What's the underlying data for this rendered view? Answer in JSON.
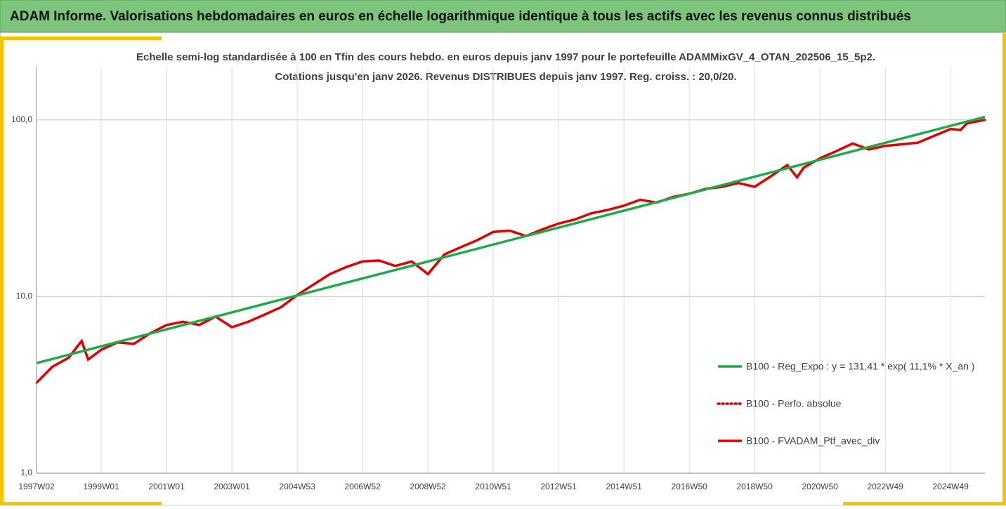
{
  "header": {
    "title": "ADAM Informe. Valorisations hebdomadaires en euros en échelle logarithmique identique à tous les actifs avec les revenus connus distribués"
  },
  "chart_data": {
    "type": "line",
    "subtitle": [
      "Echelle semi-log standardisée  à 100 en Tfin des cours hebdo.  en euros depuis janv 1997 pour le portefeuille ADAMMixGV_4_OTAN_202506_15_5p2.",
      "Cotations  jusqu'en janv 2026. Revenus DISTRIBUES depuis janv 1997. Reg. croiss. : 20,0/20."
    ],
    "log_y": true,
    "grid": true,
    "legend": "right",
    "xlim": [
      1997.02,
      2026.05
    ],
    "xticks": [
      {
        "value": 1997.02,
        "label": "1997W02"
      },
      {
        "value": 1999.0,
        "label": "1999W01"
      },
      {
        "value": 2001.0,
        "label": "2001W01"
      },
      {
        "value": 2003.0,
        "label": "2003W01"
      },
      {
        "value": 2005.0,
        "label": "2004W53"
      },
      {
        "value": 2007.0,
        "label": "2006W52"
      },
      {
        "value": 2009.0,
        "label": "2008W52"
      },
      {
        "value": 2011.0,
        "label": "2010W51"
      },
      {
        "value": 2013.0,
        "label": "2012W51"
      },
      {
        "value": 2015.0,
        "label": "2014W51"
      },
      {
        "value": 2017.0,
        "label": "2016W50"
      },
      {
        "value": 2019.0,
        "label": "2018W50"
      },
      {
        "value": 2021.0,
        "label": "2020W50"
      },
      {
        "value": 2023.0,
        "label": "2022W49"
      },
      {
        "value": 2025.0,
        "label": "2024W49"
      }
    ],
    "ylim": [
      1,
      200
    ],
    "yticks": [
      {
        "value": 1,
        "label": "1,0"
      },
      {
        "value": 10,
        "label": "10,0"
      },
      {
        "value": 100,
        "label": "100,0"
      }
    ],
    "series": [
      {
        "name": "B100 - Reg_Expo : y = 131,41 * exp( 11,1% *  X_an )",
        "color": "#1faa4a",
        "style": "solid",
        "x": [
          1997.02,
          2026.05
        ],
        "values": [
          4.2,
          104
        ]
      },
      {
        "name": "B100 - Perfo. absolue",
        "color": "#e00000",
        "style": "dotted",
        "x": [
          1997.02,
          1997.5,
          1998.0,
          1998.4,
          1998.6,
          1999.0,
          1999.5,
          2000.0,
          2000.5,
          2001.0,
          2001.5,
          2002.0,
          2002.5,
          2003.0,
          2003.5,
          2004.0,
          2004.5,
          2005.0,
          2005.5,
          2006.0,
          2006.5,
          2007.0,
          2007.5,
          2008.0,
          2008.5,
          2009.0,
          2009.5,
          2010.0,
          2010.5,
          2011.0,
          2011.5,
          2012.0,
          2012.5,
          2013.0,
          2013.5,
          2014.0,
          2014.5,
          2015.0,
          2015.5,
          2016.0,
          2016.5,
          2017.0,
          2017.5,
          2018.0,
          2018.5,
          2019.0,
          2019.5,
          2020.0,
          2020.3,
          2020.5,
          2021.0,
          2021.5,
          2022.0,
          2022.5,
          2023.0,
          2023.5,
          2024.0,
          2024.5,
          2025.0,
          2025.3,
          2025.5,
          2026.05
        ],
        "values": [
          3.25,
          4.0,
          4.5,
          5.6,
          4.4,
          5.0,
          5.5,
          5.4,
          6.2,
          6.9,
          7.2,
          6.9,
          7.7,
          6.7,
          7.2,
          7.9,
          8.7,
          10.2,
          11.7,
          13.4,
          14.7,
          15.8,
          16,
          14.9,
          15.8,
          13.4,
          17.3,
          19,
          20.8,
          23.2,
          23.6,
          22,
          24,
          25.9,
          27.3,
          29.6,
          30.9,
          32.7,
          35.3,
          34,
          36.6,
          38.2,
          40.7,
          41.8,
          43.9,
          41.8,
          48,
          55.5,
          47.3,
          53.6,
          60.6,
          66.5,
          73.5,
          68,
          71.3,
          72.7,
          74.3,
          81.3,
          88.8,
          87.5,
          95.6,
          100
        ]
      },
      {
        "name": "B100 - FVADAM_Ptf_avec_div",
        "color": "#e00000",
        "style": "solid",
        "x": [
          1997.02,
          1997.5,
          1998.0,
          1998.4,
          1998.6,
          1999.0,
          1999.5,
          2000.0,
          2000.5,
          2001.0,
          2001.5,
          2002.0,
          2002.5,
          2003.0,
          2003.5,
          2004.0,
          2004.5,
          2005.0,
          2005.5,
          2006.0,
          2006.5,
          2007.0,
          2007.5,
          2008.0,
          2008.5,
          2009.0,
          2009.5,
          2010.0,
          2010.5,
          2011.0,
          2011.5,
          2012.0,
          2012.5,
          2013.0,
          2013.5,
          2014.0,
          2014.5,
          2015.0,
          2015.5,
          2016.0,
          2016.5,
          2017.0,
          2017.5,
          2018.0,
          2018.5,
          2019.0,
          2019.5,
          2020.0,
          2020.3,
          2020.5,
          2021.0,
          2021.5,
          2022.0,
          2022.5,
          2023.0,
          2023.5,
          2024.0,
          2024.5,
          2025.0,
          2025.3,
          2025.5,
          2026.05
        ],
        "values": [
          3.25,
          4.0,
          4.5,
          5.6,
          4.4,
          5.0,
          5.5,
          5.4,
          6.2,
          6.9,
          7.2,
          6.9,
          7.7,
          6.7,
          7.2,
          7.9,
          8.7,
          10.2,
          11.7,
          13.4,
          14.7,
          15.8,
          16,
          14.9,
          15.8,
          13.4,
          17.3,
          19,
          20.8,
          23.2,
          23.6,
          22,
          24,
          25.9,
          27.3,
          29.6,
          30.9,
          32.7,
          35.3,
          34,
          36.6,
          38.2,
          40.7,
          41.8,
          43.9,
          41.8,
          48,
          55.5,
          47.3,
          53.6,
          60.6,
          66.5,
          73.5,
          68,
          71.3,
          72.7,
          74.3,
          81.3,
          88.8,
          87.5,
          95.6,
          100
        ]
      }
    ]
  }
}
